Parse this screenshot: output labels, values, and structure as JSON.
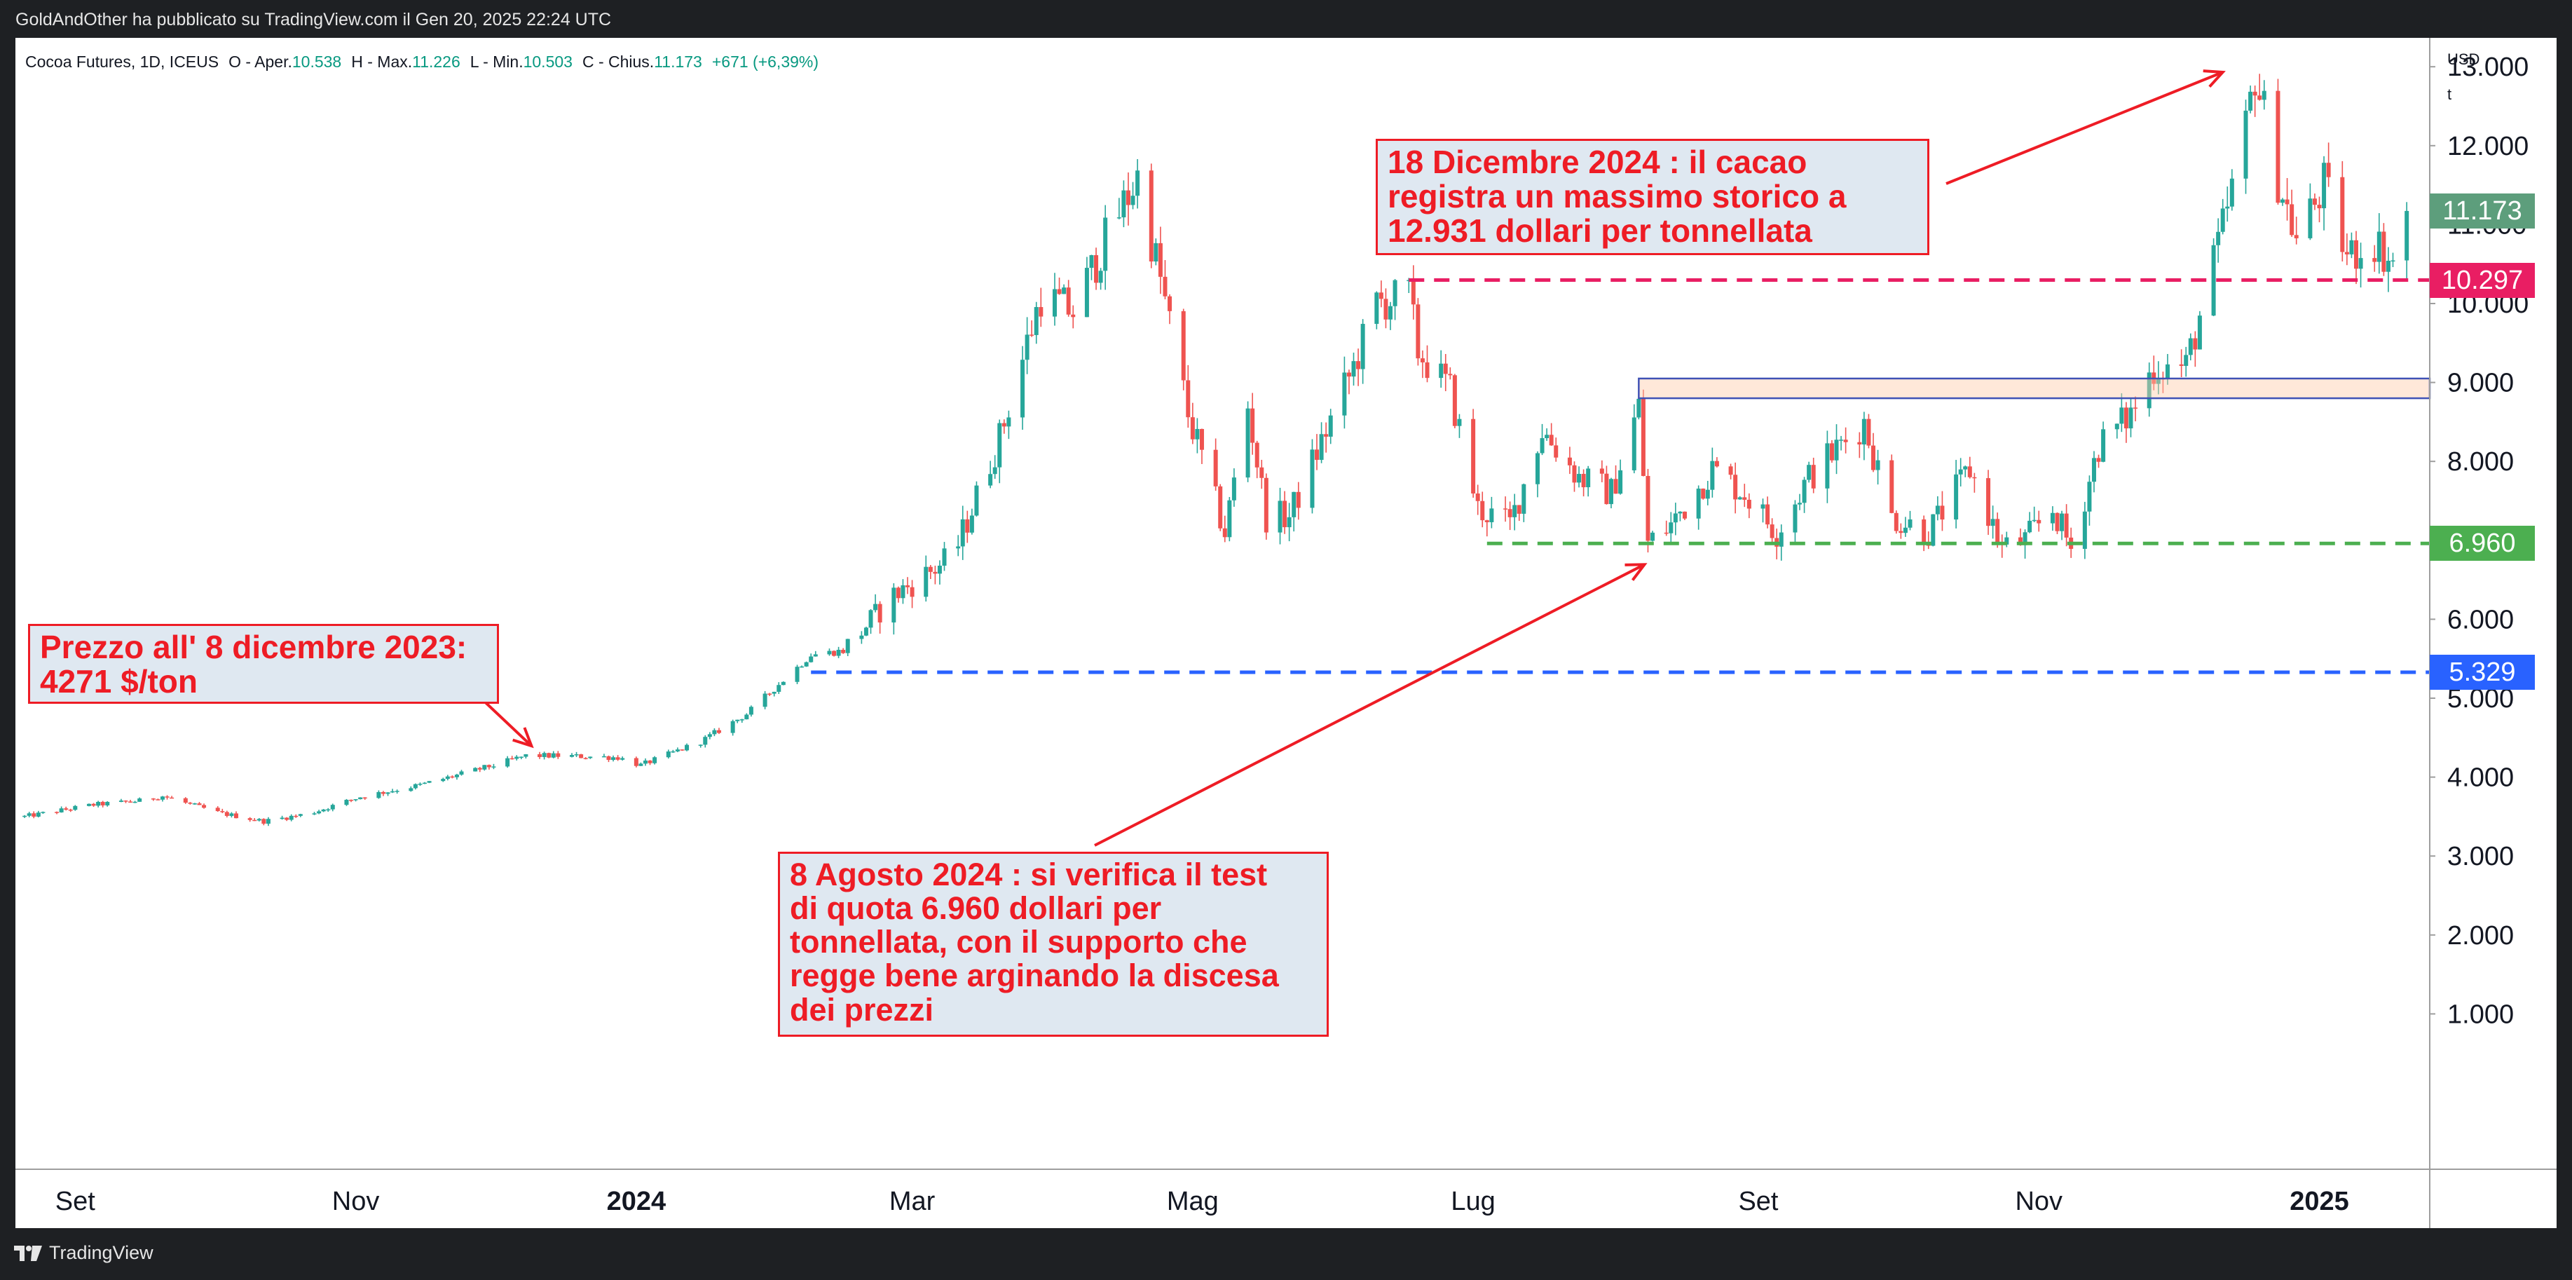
{
  "header": {
    "published_by": "GoldAndOther ha pubblicato su TradingView.com il Gen 20, 2025 22:24 UTC"
  },
  "legend": {
    "symbol": "Cocoa Futures, 1D, ICEUS",
    "open_label": "O - Aper.",
    "open": "10.538",
    "high_label": "H - Max.",
    "high": "11.226",
    "low_label": "L - Min.",
    "low": "10.503",
    "close_label": "C - Chius.",
    "close": "11.173",
    "change": "+671 (+6,39%)"
  },
  "scale": {
    "currency": "USD",
    "unit": "t"
  },
  "price_labels": [
    {
      "value": "11.173",
      "color": "#5d9e7c"
    },
    {
      "value": "10.297",
      "color": "#e91e63"
    },
    {
      "value": "6.960",
      "color": "#4caf50"
    },
    {
      "value": "5.329",
      "color": "#2962ff"
    }
  ],
  "annotations": {
    "dec2023": {
      "lines": [
        "Prezzo all' 8 dicembre 2023:",
        "4271 $/ton"
      ]
    },
    "aug2024": {
      "lines": [
        "8 Agosto 2024 : si verifica il test",
        "di quota 6.960 dollari per",
        "tonnellata, con il supporto che",
        "regge bene arginando la discesa",
        "dei prezzi"
      ]
    },
    "dec2024": {
      "lines": [
        "18 Dicembre 2024 : il cacao",
        "registra un massimo storico a",
        "12.931 dollari per tonnellata"
      ]
    }
  },
  "footer": {
    "brand": "TradingView"
  },
  "colors": {
    "up": "#26a69a",
    "down": "#ef5350",
    "accent_red": "#ee1c25"
  },
  "chart_data": {
    "type": "candlestick",
    "title": "Cocoa Futures, 1D, ICEUS",
    "ylabel": "USD / t",
    "ylim": [
      0,
      13800
    ],
    "y_ticks": [
      1000,
      2000,
      3000,
      4000,
      5000,
      6000,
      7000,
      8000,
      9000,
      10000,
      11000,
      12000,
      13000
    ],
    "y_tick_labels": [
      "1.000",
      "2.000",
      "3.000",
      "4.000",
      "5.000",
      "6.000",
      "7.000",
      "8.000",
      "9.000",
      "10.000",
      "11.000",
      "12.000",
      "13.000"
    ],
    "x_ticks": [
      {
        "label": "Set",
        "date": "2023-09-01",
        "bold": false
      },
      {
        "label": "Nov",
        "date": "2023-11-01",
        "bold": false
      },
      {
        "label": "2024",
        "date": "2024-01-01",
        "bold": true
      },
      {
        "label": "Mar",
        "date": "2024-03-01",
        "bold": false
      },
      {
        "label": "Mag",
        "date": "2024-05-01",
        "bold": false
      },
      {
        "label": "Lug",
        "date": "2024-07-01",
        "bold": false
      },
      {
        "label": "Set",
        "date": "2024-09-01",
        "bold": false
      },
      {
        "label": "Nov",
        "date": "2024-11-01",
        "bold": false
      },
      {
        "label": "2025",
        "date": "2025-01-01",
        "bold": true
      }
    ],
    "x_range": [
      "2023-08-19",
      "2025-01-25"
    ],
    "path": [
      [
        "2023-08-21",
        3500
      ],
      [
        "2023-09-05",
        3650
      ],
      [
        "2023-09-15",
        3700
      ],
      [
        "2023-09-20",
        3760
      ],
      [
        "2023-10-02",
        3550
      ],
      [
        "2023-10-12",
        3440
      ],
      [
        "2023-10-22",
        3540
      ],
      [
        "2023-11-02",
        3750
      ],
      [
        "2023-11-15",
        3900
      ],
      [
        "2023-12-01",
        4150
      ],
      [
        "2023-12-08",
        4271
      ],
      [
        "2023-12-15",
        4270
      ],
      [
        "2023-12-28",
        4250
      ],
      [
        "2024-01-02",
        4150
      ],
      [
        "2024-01-15",
        4450
      ],
      [
        "2024-01-25",
        4800
      ],
      [
        "2024-02-08",
        5550
      ],
      [
        "2024-02-15",
        5600
      ],
      [
        "2024-02-26",
        6300
      ],
      [
        "2024-03-10",
        6800
      ],
      [
        "2024-03-20",
        8300
      ],
      [
        "2024-03-26",
        9500
      ],
      [
        "2024-03-29",
        10100
      ],
      [
        "2024-04-05",
        9900
      ],
      [
        "2024-04-12",
        10800
      ],
      [
        "2024-04-19",
        11600
      ],
      [
        "2024-04-24",
        10300
      ],
      [
        "2024-04-30",
        8600
      ],
      [
        "2024-05-08",
        7100
      ],
      [
        "2024-05-13",
        8700
      ],
      [
        "2024-05-17",
        7300
      ],
      [
        "2024-05-22",
        7300
      ],
      [
        "2024-06-05",
        9200
      ],
      [
        "2024-06-10",
        10000
      ],
      [
        "2024-06-17",
        10100
      ],
      [
        "2024-06-19",
        9400
      ],
      [
        "2024-06-26",
        8900
      ],
      [
        "2024-07-02",
        7400
      ],
      [
        "2024-07-09",
        7200
      ],
      [
        "2024-07-16",
        8400
      ],
      [
        "2024-07-24",
        7800
      ],
      [
        "2024-07-31",
        7600
      ],
      [
        "2024-08-06",
        8700
      ],
      [
        "2024-08-08",
        6960
      ],
      [
        "2024-08-13",
        7200
      ],
      [
        "2024-08-22",
        7900
      ],
      [
        "2024-08-29",
        7600
      ],
      [
        "2024-09-05",
        7100
      ],
      [
        "2024-09-12",
        7800
      ],
      [
        "2024-09-24",
        8500
      ],
      [
        "2024-09-30",
        7300
      ],
      [
        "2024-10-08",
        7100
      ],
      [
        "2024-10-17",
        7900
      ],
      [
        "2024-10-24",
        6900
      ],
      [
        "2024-10-29",
        7000
      ],
      [
        "2024-11-04",
        7400
      ],
      [
        "2024-11-08",
        6900
      ],
      [
        "2024-11-14",
        8200
      ],
      [
        "2024-11-21",
        8600
      ],
      [
        "2024-11-26",
        9200
      ],
      [
        "2024-12-03",
        9200
      ],
      [
        "2024-12-10",
        10700
      ],
      [
        "2024-12-16",
        12200
      ],
      [
        "2024-12-18",
        12931
      ],
      [
        "2024-12-23",
        11600
      ],
      [
        "2024-12-27",
        10800
      ],
      [
        "2025-01-02",
        11500
      ],
      [
        "2025-01-07",
        10600
      ],
      [
        "2025-01-13",
        10800
      ],
      [
        "2025-01-17",
        10500
      ],
      [
        "2025-01-20",
        11173
      ]
    ],
    "levels": [
      {
        "value": 10297,
        "label": "10.297",
        "color": "#e91e63",
        "from": "2024-06-17"
      },
      {
        "value": 6960,
        "label": "6.960",
        "color": "#4caf50",
        "from": "2024-07-04"
      },
      {
        "value": 5329,
        "label": "5.329",
        "color": "#2962ff",
        "from": "2024-02-08"
      }
    ],
    "zone": {
      "from": "2024-08-06",
      "y_low": 8800,
      "y_high": 9050
    },
    "highlights": [
      {
        "label": "Prezzo all' 8 dicembre 2023: 4271 $/ton",
        "date": "2023-12-08",
        "value": 4271
      },
      {
        "label": "8 Agosto 2024",
        "date": "2024-08-08",
        "value": 6960
      },
      {
        "label": "18 Dicembre 2024",
        "date": "2024-12-18",
        "value": 12931
      }
    ]
  }
}
